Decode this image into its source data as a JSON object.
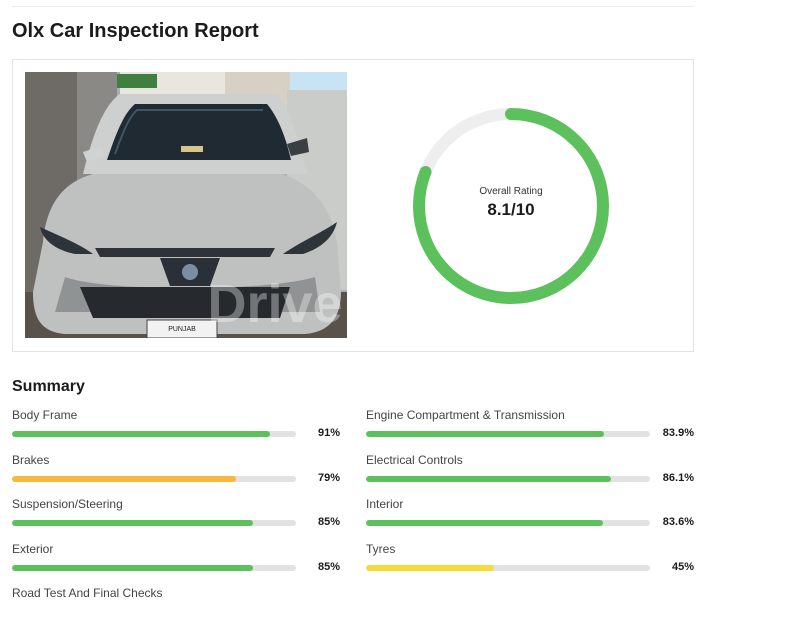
{
  "page": {
    "title": "Olx Car Inspection Report"
  },
  "hero": {
    "image_alt": "Silver SUV front view",
    "watermark": "Drive",
    "plate_text": "PUNJAB",
    "rating": {
      "label": "Overall Rating",
      "value_text": "8.1/10",
      "value": 8.1,
      "max": 10,
      "color": "#5cc15d",
      "track_color": "#eeeeee"
    }
  },
  "summary": {
    "title": "Summary",
    "items": [
      {
        "label": "Body Frame",
        "value_text": "91%",
        "percent": 91,
        "color": "#5cc15d"
      },
      {
        "label": "Engine Compartment & Transmission",
        "value_text": "83.9%",
        "percent": 83.9,
        "color": "#5cc15d"
      },
      {
        "label": "Brakes",
        "value_text": "79%",
        "percent": 79,
        "color": "#f5b93e"
      },
      {
        "label": "Electrical Controls",
        "value_text": "86.1%",
        "percent": 86.1,
        "color": "#5cc15d"
      },
      {
        "label": "Suspension/Steering",
        "value_text": "85%",
        "percent": 85,
        "color": "#5cc15d"
      },
      {
        "label": "Interior",
        "value_text": "83.6%",
        "percent": 83.6,
        "color": "#5cc15d"
      },
      {
        "label": "Exterior",
        "value_text": "85%",
        "percent": 85,
        "color": "#5cc15d"
      },
      {
        "label": "Tyres",
        "value_text": "45%",
        "percent": 45,
        "color": "#f2dc3a"
      },
      {
        "label": "Road Test And Final Checks"
      }
    ]
  }
}
